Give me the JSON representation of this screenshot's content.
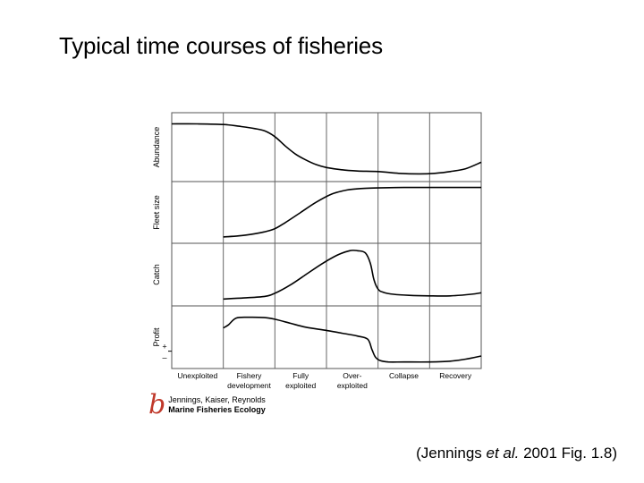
{
  "title": "Typical time courses of fisheries",
  "chart_data": {
    "type": "line",
    "x_label": "",
    "stages": [
      {
        "line1": "Unexploited",
        "line2": ""
      },
      {
        "line1": "Fishery",
        "line2": "development"
      },
      {
        "line1": "Fully",
        "line2": "exploited"
      },
      {
        "line1": "Over-",
        "line2": "exploited"
      },
      {
        "line1": "Collapse",
        "line2": ""
      },
      {
        "line1": "Recovery",
        "line2": ""
      }
    ],
    "stage_boundaries": [
      0,
      1,
      2,
      3,
      4,
      5,
      6
    ],
    "panels": [
      {
        "name": "Abundance",
        "ylim": [
          0,
          1
        ],
        "x": [
          0,
          0.5,
          1.0,
          1.3,
          1.6,
          1.8,
          2.0,
          2.2,
          2.4,
          2.6,
          2.8,
          3.0,
          3.3,
          3.6,
          4.0,
          4.4,
          4.8,
          5.1,
          5.4,
          5.7,
          6.0
        ],
        "y": [
          0.9,
          0.9,
          0.89,
          0.86,
          0.82,
          0.78,
          0.68,
          0.52,
          0.38,
          0.28,
          0.2,
          0.15,
          0.11,
          0.09,
          0.08,
          0.05,
          0.04,
          0.05,
          0.08,
          0.13,
          0.24
        ]
      },
      {
        "name": "Fleet size",
        "ylim": [
          0,
          1
        ],
        "x": [
          1.0,
          1.3,
          1.6,
          1.8,
          2.0,
          2.2,
          2.5,
          2.8,
          3.1,
          3.4,
          3.7,
          4.0,
          4.5,
          5.0,
          5.5,
          6.0
        ],
        "y": [
          0.02,
          0.04,
          0.08,
          0.12,
          0.18,
          0.3,
          0.5,
          0.7,
          0.86,
          0.94,
          0.97,
          0.98,
          0.99,
          0.99,
          0.99,
          0.99
        ]
      },
      {
        "name": "Catch",
        "ylim": [
          0,
          1
        ],
        "x": [
          1.0,
          1.4,
          1.8,
          2.0,
          2.3,
          2.6,
          2.9,
          3.2,
          3.45,
          3.6,
          3.75,
          3.85,
          3.92,
          4.0,
          4.1,
          4.3,
          4.6,
          5.0,
          5.4,
          5.8,
          6.0
        ],
        "y": [
          0.03,
          0.05,
          0.08,
          0.14,
          0.3,
          0.5,
          0.7,
          0.87,
          0.96,
          0.96,
          0.92,
          0.72,
          0.4,
          0.22,
          0.16,
          0.12,
          0.1,
          0.09,
          0.09,
          0.12,
          0.15
        ]
      },
      {
        "name": "Profit",
        "ylim": [
          -0.3,
          1
        ],
        "zero_markers": {
          "plus": "+",
          "minus": "–"
        },
        "x": [
          1.0,
          1.1,
          1.25,
          1.5,
          1.8,
          2.0,
          2.3,
          2.6,
          3.0,
          3.3,
          3.6,
          3.8,
          3.88,
          3.95,
          4.05,
          4.2,
          4.5,
          5.0,
          5.4,
          5.7,
          6.0
        ],
        "y": [
          0.58,
          0.66,
          0.83,
          0.85,
          0.84,
          0.8,
          0.7,
          0.6,
          0.52,
          0.45,
          0.38,
          0.3,
          0.05,
          -0.15,
          -0.24,
          -0.27,
          -0.27,
          -0.27,
          -0.25,
          -0.2,
          -0.12
        ]
      }
    ]
  },
  "credit": {
    "letter": "b",
    "line1": "Jennings, Kaiser, Reynolds",
    "line2": "Marine Fisheries Ecology"
  },
  "citation": {
    "prefix": "(Jennings ",
    "italic": "et al.",
    "suffix": " 2001 Fig. 1.8)"
  }
}
